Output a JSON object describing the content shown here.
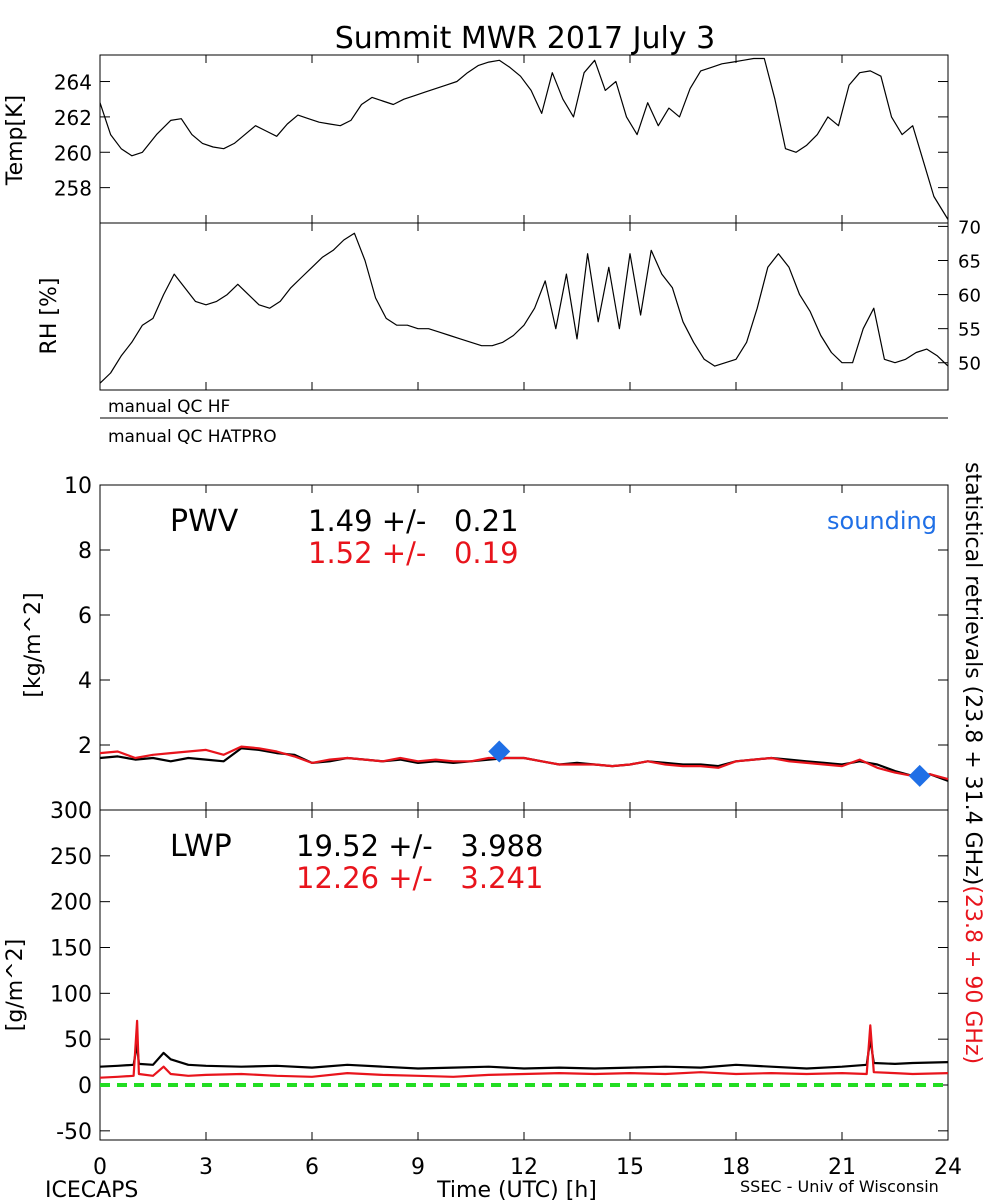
{
  "title": "Summit MWR 2017 July  3",
  "footer": {
    "left": "ICECAPS",
    "right": "SSEC - Univ of Wisconsin"
  },
  "right_annotation": {
    "black": "statistical retrievals (23.8 + 31.4 GHz)",
    "red": "(23.8 + 90 GHz)"
  },
  "colors": {
    "primary": "#000000",
    "secondary": "#e8141c",
    "sounding": "#1f6fe6",
    "zero_line": "#22dd22"
  },
  "qc_flags": [
    "manual QC HF",
    "manual QC HATPRO"
  ],
  "chart_data": [
    {
      "id": "temp",
      "type": "line",
      "ylabel": "Temp[K]",
      "xlim": [
        0,
        24
      ],
      "ylim": [
        256,
        265.5
      ],
      "yticks": [
        258,
        260,
        262,
        264
      ],
      "series": [
        {
          "color": "#000000",
          "x": [
            0,
            0.3,
            0.6,
            0.9,
            1.2,
            1.6,
            2.0,
            2.3,
            2.6,
            2.9,
            3.2,
            3.5,
            3.8,
            4.1,
            4.4,
            4.7,
            5.0,
            5.3,
            5.6,
            5.9,
            6.2,
            6.5,
            6.8,
            7.1,
            7.4,
            7.7,
            8.0,
            8.3,
            8.6,
            8.9,
            9.2,
            9.5,
            9.8,
            10.1,
            10.4,
            10.7,
            11.0,
            11.3,
            11.6,
            11.9,
            12.2,
            12.5,
            12.8,
            13.1,
            13.4,
            13.7,
            14.0,
            14.3,
            14.6,
            14.9,
            15.2,
            15.5,
            15.8,
            16.1,
            16.4,
            16.7,
            17.0,
            17.3,
            17.6,
            17.9,
            18.2,
            18.5,
            18.8,
            19.1,
            19.4,
            19.7,
            20.0,
            20.3,
            20.6,
            20.9,
            21.2,
            21.5,
            21.8,
            22.1,
            22.4,
            22.7,
            23.0,
            23.3,
            23.6,
            24.0
          ],
          "y": [
            262.8,
            261.0,
            260.2,
            259.8,
            260.0,
            261.0,
            261.8,
            261.9,
            261.0,
            260.5,
            260.3,
            260.2,
            260.5,
            261.0,
            261.5,
            261.2,
            260.9,
            261.6,
            262.1,
            261.9,
            261.7,
            261.6,
            261.5,
            261.8,
            262.7,
            263.1,
            262.9,
            262.7,
            263.0,
            263.2,
            263.4,
            263.6,
            263.8,
            264.0,
            264.5,
            264.9,
            265.1,
            265.2,
            264.8,
            264.3,
            263.5,
            262.2,
            264.5,
            263.0,
            262.0,
            264.5,
            265.2,
            263.5,
            264.0,
            262.0,
            261.0,
            262.8,
            261.5,
            262.5,
            262.0,
            263.6,
            264.6,
            264.8,
            265.0,
            265.1,
            265.2,
            265.3,
            265.3,
            263.0,
            260.2,
            260.0,
            260.4,
            261.0,
            262.0,
            261.5,
            263.8,
            264.5,
            264.6,
            264.3,
            262.0,
            261.0,
            261.5,
            259.5,
            257.5,
            256.2
          ]
        }
      ]
    },
    {
      "id": "rh",
      "type": "line",
      "ylabel": "RH [%]",
      "xlim": [
        0,
        24
      ],
      "ylim": [
        46,
        70.5
      ],
      "yticks": [
        50,
        55,
        60,
        65,
        70
      ],
      "series": [
        {
          "color": "#000000",
          "x": [
            0,
            0.3,
            0.6,
            0.9,
            1.2,
            1.5,
            1.8,
            2.1,
            2.4,
            2.7,
            3.0,
            3.3,
            3.6,
            3.9,
            4.2,
            4.5,
            4.8,
            5.1,
            5.4,
            5.7,
            6.0,
            6.3,
            6.6,
            6.9,
            7.2,
            7.5,
            7.8,
            8.1,
            8.4,
            8.7,
            9.0,
            9.3,
            9.6,
            9.9,
            10.2,
            10.5,
            10.8,
            11.1,
            11.4,
            11.7,
            12.0,
            12.3,
            12.6,
            12.9,
            13.2,
            13.5,
            13.8,
            14.1,
            14.4,
            14.7,
            15.0,
            15.3,
            15.6,
            15.9,
            16.2,
            16.5,
            16.8,
            17.1,
            17.4,
            17.7,
            18.0,
            18.3,
            18.6,
            18.9,
            19.2,
            19.5,
            19.8,
            20.1,
            20.4,
            20.7,
            21.0,
            21.3,
            21.6,
            21.9,
            22.2,
            22.5,
            22.8,
            23.1,
            23.4,
            23.7,
            24.0
          ],
          "y": [
            47.0,
            48.5,
            51.0,
            53.0,
            55.5,
            56.5,
            60.0,
            63.0,
            61.0,
            59.0,
            58.5,
            59.0,
            60.0,
            61.5,
            60.0,
            58.5,
            58.0,
            59.0,
            61.0,
            62.5,
            64.0,
            65.5,
            66.5,
            68.0,
            69.0,
            65.0,
            59.5,
            56.5,
            55.5,
            55.5,
            55.0,
            55.0,
            54.5,
            54.0,
            53.5,
            53.0,
            52.5,
            52.5,
            53.0,
            54.0,
            55.5,
            58.0,
            62.0,
            55.0,
            63.0,
            53.5,
            66.0,
            56.0,
            64.0,
            55.0,
            66.0,
            57.0,
            66.5,
            63.0,
            61.0,
            56.0,
            53.0,
            50.5,
            49.5,
            50.0,
            50.5,
            53.0,
            58.0,
            64.0,
            66.0,
            64.0,
            60.0,
            57.5,
            54.0,
            51.5,
            50.0,
            50.0,
            55.0,
            58.0,
            50.5,
            50.0,
            50.5,
            51.5,
            52.0,
            51.0,
            49.5
          ]
        }
      ]
    },
    {
      "id": "pwv",
      "type": "line",
      "title": "PWV",
      "ylabel": "[kg/m^2]",
      "xlim": [
        0,
        24
      ],
      "ylim": [
        0,
        10
      ],
      "yticks": [
        0,
        2,
        4,
        6,
        8,
        10
      ],
      "stats": [
        {
          "text": "1.49 +/-   0.21",
          "color": "#000000"
        },
        {
          "text": "1.52 +/-   0.19",
          "color": "#e8141c"
        }
      ],
      "legend": {
        "label": "sounding",
        "position": "top-right"
      },
      "series": [
        {
          "color": "#000000",
          "x": [
            0,
            0.5,
            1.0,
            1.5,
            2.0,
            2.5,
            3.0,
            3.5,
            4.0,
            4.5,
            5.0,
            5.5,
            6.0,
            6.5,
            7.0,
            7.5,
            8.0,
            8.5,
            9.0,
            9.5,
            10.0,
            10.5,
            11.0,
            11.5,
            12.0,
            12.5,
            13.0,
            13.5,
            14.0,
            14.5,
            15.0,
            15.5,
            16.0,
            16.5,
            17.0,
            17.5,
            18.0,
            18.5,
            19.0,
            19.5,
            20.0,
            20.5,
            21.0,
            21.5,
            22.0,
            22.5,
            23.0,
            23.5,
            24.0
          ],
          "y": [
            1.6,
            1.65,
            1.55,
            1.6,
            1.5,
            1.6,
            1.55,
            1.5,
            1.9,
            1.85,
            1.75,
            1.7,
            1.45,
            1.5,
            1.6,
            1.55,
            1.5,
            1.55,
            1.45,
            1.5,
            1.45,
            1.5,
            1.55,
            1.6,
            1.6,
            1.5,
            1.4,
            1.45,
            1.4,
            1.35,
            1.4,
            1.5,
            1.45,
            1.4,
            1.4,
            1.35,
            1.5,
            1.55,
            1.6,
            1.55,
            1.5,
            1.45,
            1.4,
            1.5,
            1.4,
            1.2,
            1.05,
            1.1,
            0.9
          ]
        },
        {
          "color": "#e8141c",
          "x": [
            0,
            0.5,
            1.0,
            1.5,
            2.0,
            2.5,
            3.0,
            3.5,
            4.0,
            4.5,
            5.0,
            5.5,
            6.0,
            6.5,
            7.0,
            7.5,
            8.0,
            8.5,
            9.0,
            9.5,
            10.0,
            10.5,
            11.0,
            11.5,
            12.0,
            12.5,
            13.0,
            13.5,
            14.0,
            14.5,
            15.0,
            15.5,
            16.0,
            16.5,
            17.0,
            17.5,
            18.0,
            18.5,
            19.0,
            19.5,
            20.0,
            20.5,
            21.0,
            21.5,
            22.0,
            22.5,
            23.0,
            23.5,
            24.0
          ],
          "y": [
            1.75,
            1.8,
            1.6,
            1.7,
            1.75,
            1.8,
            1.85,
            1.7,
            1.95,
            1.9,
            1.8,
            1.65,
            1.45,
            1.55,
            1.6,
            1.55,
            1.5,
            1.6,
            1.5,
            1.55,
            1.5,
            1.5,
            1.6,
            1.6,
            1.6,
            1.5,
            1.4,
            1.4,
            1.4,
            1.35,
            1.4,
            1.5,
            1.4,
            1.35,
            1.35,
            1.3,
            1.5,
            1.55,
            1.6,
            1.5,
            1.45,
            1.4,
            1.35,
            1.55,
            1.3,
            1.15,
            1.05,
            1.1,
            0.95
          ]
        }
      ],
      "points": [
        {
          "x": 11.3,
          "y": 1.8,
          "color": "#1f6fe6"
        },
        {
          "x": 23.2,
          "y": 1.05,
          "color": "#1f6fe6"
        }
      ]
    },
    {
      "id": "lwp",
      "type": "line",
      "title": "LWP",
      "ylabel": "[g/m^2]",
      "xlabel": "Time (UTC) [h]",
      "xlim": [
        0,
        24
      ],
      "xticks": [
        0,
        3,
        6,
        9,
        12,
        15,
        18,
        21,
        24
      ],
      "ylim": [
        -60,
        300
      ],
      "yticks": [
        -50,
        0,
        50,
        100,
        150,
        200,
        250,
        300
      ],
      "stats": [
        {
          "text": "19.52 +/-   3.988",
          "color": "#000000"
        },
        {
          "text": "12.26 +/-   3.241",
          "color": "#e8141c"
        }
      ],
      "series": [
        {
          "color": "#000000",
          "x": [
            0,
            0.5,
            0.95,
            1.05,
            1.1,
            1.5,
            1.8,
            2.0,
            2.5,
            3.0,
            4.0,
            5.0,
            6.0,
            7.0,
            8.0,
            9.0,
            10.0,
            11.0,
            12.0,
            13.0,
            14.0,
            15.0,
            16.0,
            17.0,
            18.0,
            19.0,
            20.0,
            21.0,
            21.7,
            21.8,
            21.9,
            22.5,
            23.0,
            24.0
          ],
          "y": [
            20,
            21,
            22,
            45,
            23,
            22,
            35,
            28,
            22,
            21,
            20,
            21,
            19,
            22,
            20,
            18,
            19,
            20,
            18,
            19,
            18,
            19,
            20,
            19,
            22,
            20,
            18,
            20,
            22,
            50,
            24,
            23,
            24,
            25
          ]
        },
        {
          "color": "#e8141c",
          "x": [
            0,
            0.5,
            0.95,
            1.05,
            1.1,
            1.5,
            1.8,
            2.0,
            2.5,
            3.0,
            4.0,
            5.0,
            6.0,
            7.0,
            8.0,
            9.0,
            10.0,
            11.0,
            12.0,
            13.0,
            14.0,
            15.0,
            16.0,
            17.0,
            18.0,
            19.0,
            20.0,
            21.0,
            21.7,
            21.8,
            21.9,
            22.5,
            23.0,
            24.0
          ],
          "y": [
            8,
            9,
            10,
            70,
            12,
            10,
            20,
            12,
            10,
            11,
            12,
            10,
            9,
            13,
            11,
            10,
            9,
            11,
            12,
            13,
            12,
            13,
            12,
            14,
            12,
            13,
            12,
            13,
            12,
            65,
            14,
            13,
            12,
            13
          ]
        }
      ],
      "reference_line": {
        "y": 0,
        "color": "#22dd22"
      }
    }
  ]
}
